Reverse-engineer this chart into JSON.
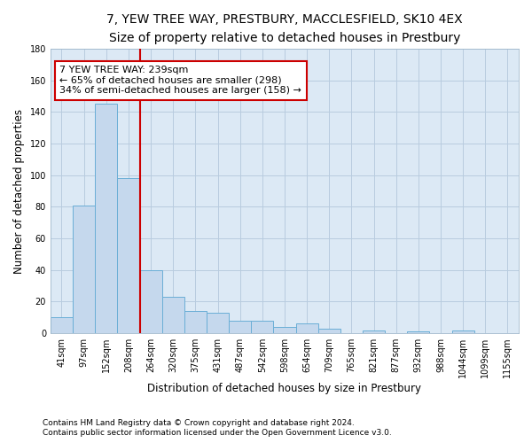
{
  "title_line1": "7, YEW TREE WAY, PRESTBURY, MACCLESFIELD, SK10 4EX",
  "title_line2": "Size of property relative to detached houses in Prestbury",
  "xlabel": "Distribution of detached houses by size in Prestbury",
  "ylabel": "Number of detached properties",
  "categories": [
    "41sqm",
    "97sqm",
    "152sqm",
    "208sqm",
    "264sqm",
    "320sqm",
    "375sqm",
    "431sqm",
    "487sqm",
    "542sqm",
    "598sqm",
    "654sqm",
    "709sqm",
    "765sqm",
    "821sqm",
    "877sqm",
    "932sqm",
    "988sqm",
    "1044sqm",
    "1099sqm",
    "1155sqm"
  ],
  "values": [
    10,
    81,
    145,
    98,
    40,
    23,
    14,
    13,
    8,
    8,
    4,
    6,
    3,
    0,
    2,
    0,
    1,
    0,
    2,
    0,
    0
  ],
  "bar_color": "#c5d8ed",
  "bar_edge_color": "#6aaed6",
  "background_color": "#ffffff",
  "plot_bg_color": "#dce9f5",
  "grid_color": "#b8ccdf",
  "vline_color": "#cc0000",
  "vline_x_index": 3.5,
  "ylim": [
    0,
    180
  ],
  "yticks": [
    0,
    20,
    40,
    60,
    80,
    100,
    120,
    140,
    160,
    180
  ],
  "annotation_line1": "7 YEW TREE WAY: 239sqm",
  "annotation_line2": "← 65% of detached houses are smaller (298)",
  "annotation_line3": "34% of semi-detached houses are larger (158) →",
  "annotation_box_color": "#ffffff",
  "annotation_box_edge": "#cc0000",
  "footer_line1": "Contains HM Land Registry data © Crown copyright and database right 2024.",
  "footer_line2": "Contains public sector information licensed under the Open Government Licence v3.0.",
  "title_fontsize": 10,
  "subtitle_fontsize": 9,
  "axis_label_fontsize": 8.5,
  "tick_fontsize": 7,
  "annotation_fontsize": 8,
  "footer_fontsize": 6.5
}
